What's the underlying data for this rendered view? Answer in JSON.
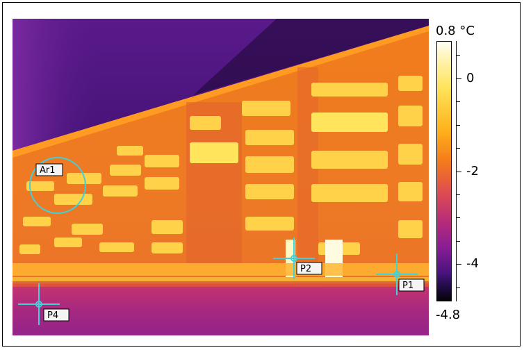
{
  "markers": {
    "area1": "Ar1",
    "p1": "P1",
    "p2": "P2",
    "p4": "P4"
  },
  "scale": {
    "max": "0.8 °C",
    "min": "-4.8",
    "ticks": [
      {
        "label": "0",
        "value": 0
      },
      {
        "label": "-2",
        "value": -2
      },
      {
        "label": "-4",
        "value": -4
      }
    ],
    "range": [
      -4.8,
      0.8
    ]
  },
  "colors": {
    "marker": "#40d0d8",
    "sky": "#3c0f72",
    "hot": "#ffe35a"
  }
}
